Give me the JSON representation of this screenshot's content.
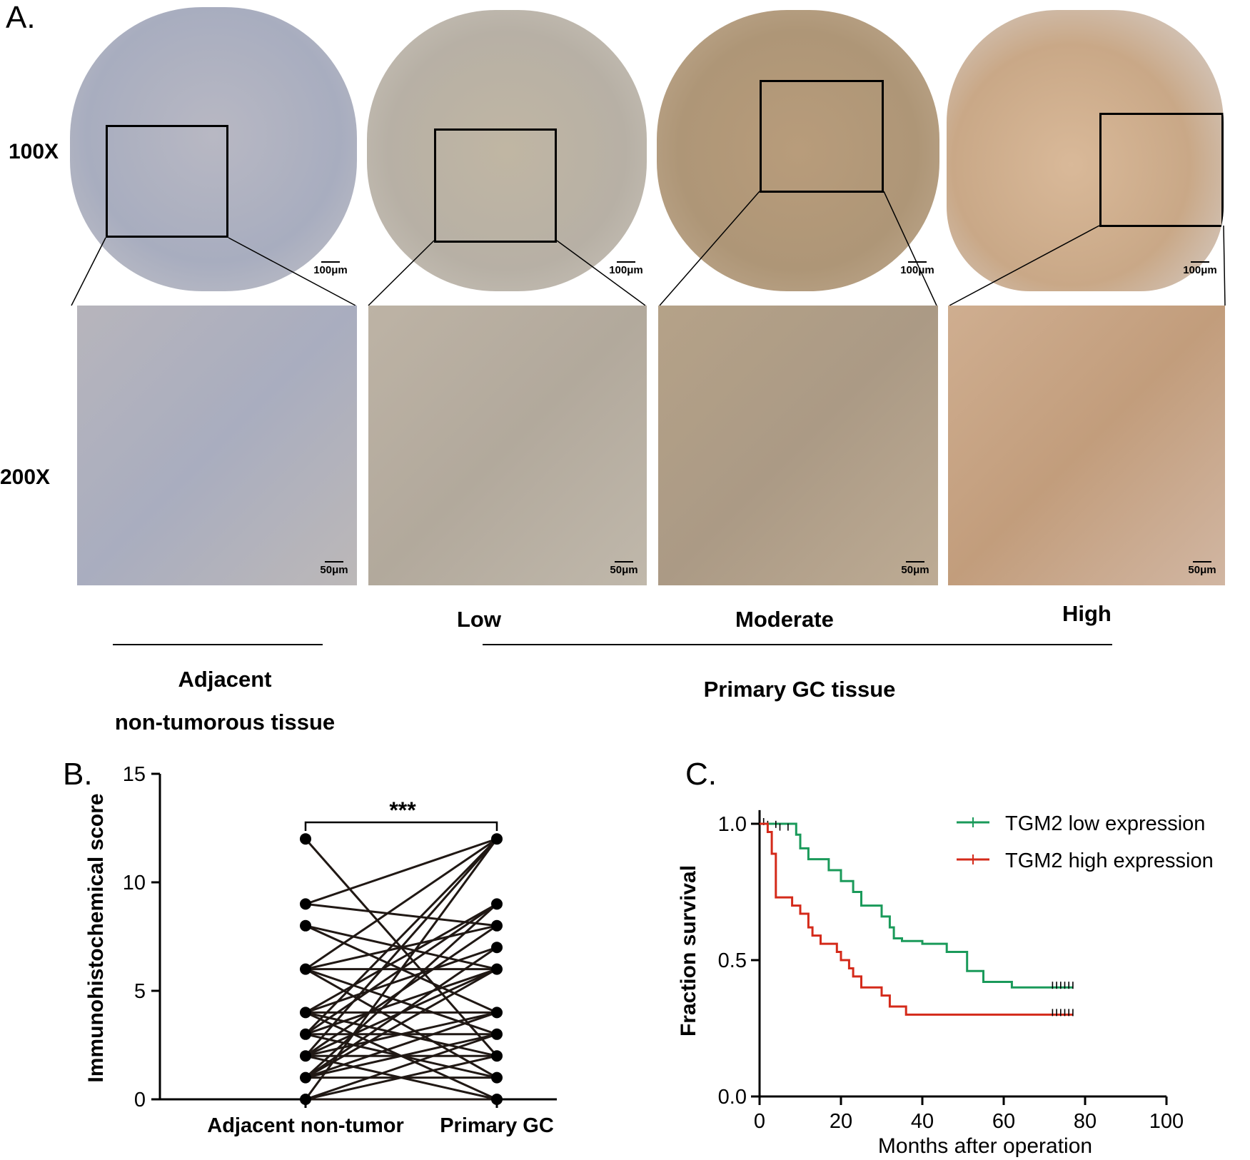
{
  "panel_a": {
    "letter": "A.",
    "row_labels": [
      "100X",
      "200X"
    ],
    "scale_top": "100μm",
    "scale_bottom": "50μm",
    "groups": [
      "Low",
      "Moderate",
      "High"
    ],
    "adjacent_label_line1": "Adjacent",
    "adjacent_label_line2": "non-tumorous tissue",
    "primary_label": "Primary GC tissue",
    "colors": {
      "tissue_blue": "#8a93ad",
      "tissue_brown": "#b48b62",
      "background": "#d6cfc0"
    }
  },
  "panel_b": {
    "letter": "B.",
    "chart_data": {
      "type": "scatter",
      "ylabel": "Immunohistochemical score",
      "categories": [
        "Adjacent non-tumor",
        "Primary GC"
      ],
      "ylim": [
        0,
        15
      ],
      "yticks": [
        0,
        5,
        10,
        15
      ],
      "significance": "***",
      "pairs": [
        [
          12,
          2
        ],
        [
          9,
          12
        ],
        [
          9,
          8
        ],
        [
          8,
          6
        ],
        [
          6,
          12
        ],
        [
          6,
          3
        ],
        [
          6,
          8
        ],
        [
          6,
          6
        ],
        [
          4,
          9
        ],
        [
          4,
          2
        ],
        [
          4,
          7
        ],
        [
          4,
          4
        ],
        [
          3,
          12
        ],
        [
          3,
          1
        ],
        [
          3,
          6
        ],
        [
          3,
          3
        ],
        [
          2,
          8
        ],
        [
          2,
          0
        ],
        [
          2,
          4
        ],
        [
          2,
          2
        ],
        [
          2,
          6
        ],
        [
          1,
          7
        ],
        [
          1,
          3
        ],
        [
          1,
          1
        ],
        [
          1,
          9
        ],
        [
          1,
          4
        ],
        [
          0,
          3
        ],
        [
          0,
          2
        ],
        [
          0,
          0
        ],
        [
          0,
          12
        ],
        [
          6,
          1
        ],
        [
          4,
          0
        ],
        [
          3,
          9
        ],
        [
          2,
          12
        ],
        [
          8,
          4
        ],
        [
          1,
          6
        ]
      ]
    }
  },
  "panel_c": {
    "letter": "C.",
    "chart_data": {
      "type": "line",
      "xlabel": "Months after operation",
      "ylabel": "Fraction survival",
      "xlim": [
        0,
        100
      ],
      "ylim": [
        0,
        1.0
      ],
      "xticks": [
        0,
        20,
        40,
        60,
        80,
        100
      ],
      "yticks": [
        0.0,
        0.5,
        1.0
      ],
      "legend_position": "top-right",
      "series": [
        {
          "name": "TGM2 low expression",
          "color": "#1a9a5a",
          "steps": [
            [
              0,
              1.0
            ],
            [
              9,
              0.96
            ],
            [
              10,
              0.91
            ],
            [
              12,
              0.87
            ],
            [
              17,
              0.83
            ],
            [
              20,
              0.79
            ],
            [
              23,
              0.75
            ],
            [
              25,
              0.7
            ],
            [
              30,
              0.66
            ],
            [
              32,
              0.62
            ],
            [
              33,
              0.58
            ],
            [
              35,
              0.57
            ],
            [
              40,
              0.56
            ],
            [
              46,
              0.53
            ],
            [
              51,
              0.46
            ],
            [
              55,
              0.42
            ],
            [
              62,
              0.4
            ],
            [
              77,
              0.4
            ]
          ],
          "censored": [
            [
              1,
              1.0
            ],
            [
              2,
              0.99
            ],
            [
              4,
              0.99
            ],
            [
              5,
              0.98
            ],
            [
              7,
              0.98
            ],
            [
              72,
              0.4
            ],
            [
              73,
              0.4
            ],
            [
              74,
              0.4
            ],
            [
              75,
              0.4
            ],
            [
              76,
              0.4
            ],
            [
              77,
              0.4
            ]
          ]
        },
        {
          "name": "TGM2 high expression",
          "color": "#d42a1a",
          "steps": [
            [
              0,
              1.0
            ],
            [
              2,
              0.97
            ],
            [
              3,
              0.89
            ],
            [
              4,
              0.73
            ],
            [
              8,
              0.7
            ],
            [
              10,
              0.67
            ],
            [
              12,
              0.62
            ],
            [
              13,
              0.59
            ],
            [
              15,
              0.56
            ],
            [
              19,
              0.53
            ],
            [
              20,
              0.5
            ],
            [
              22,
              0.47
            ],
            [
              23,
              0.44
            ],
            [
              25,
              0.4
            ],
            [
              30,
              0.37
            ],
            [
              32,
              0.33
            ],
            [
              36,
              0.3
            ],
            [
              77,
              0.3
            ]
          ],
          "censored": [
            [
              72,
              0.3
            ],
            [
              73,
              0.3
            ],
            [
              74,
              0.3
            ],
            [
              75,
              0.3
            ],
            [
              76,
              0.3
            ],
            [
              77,
              0.3
            ]
          ]
        }
      ]
    }
  }
}
